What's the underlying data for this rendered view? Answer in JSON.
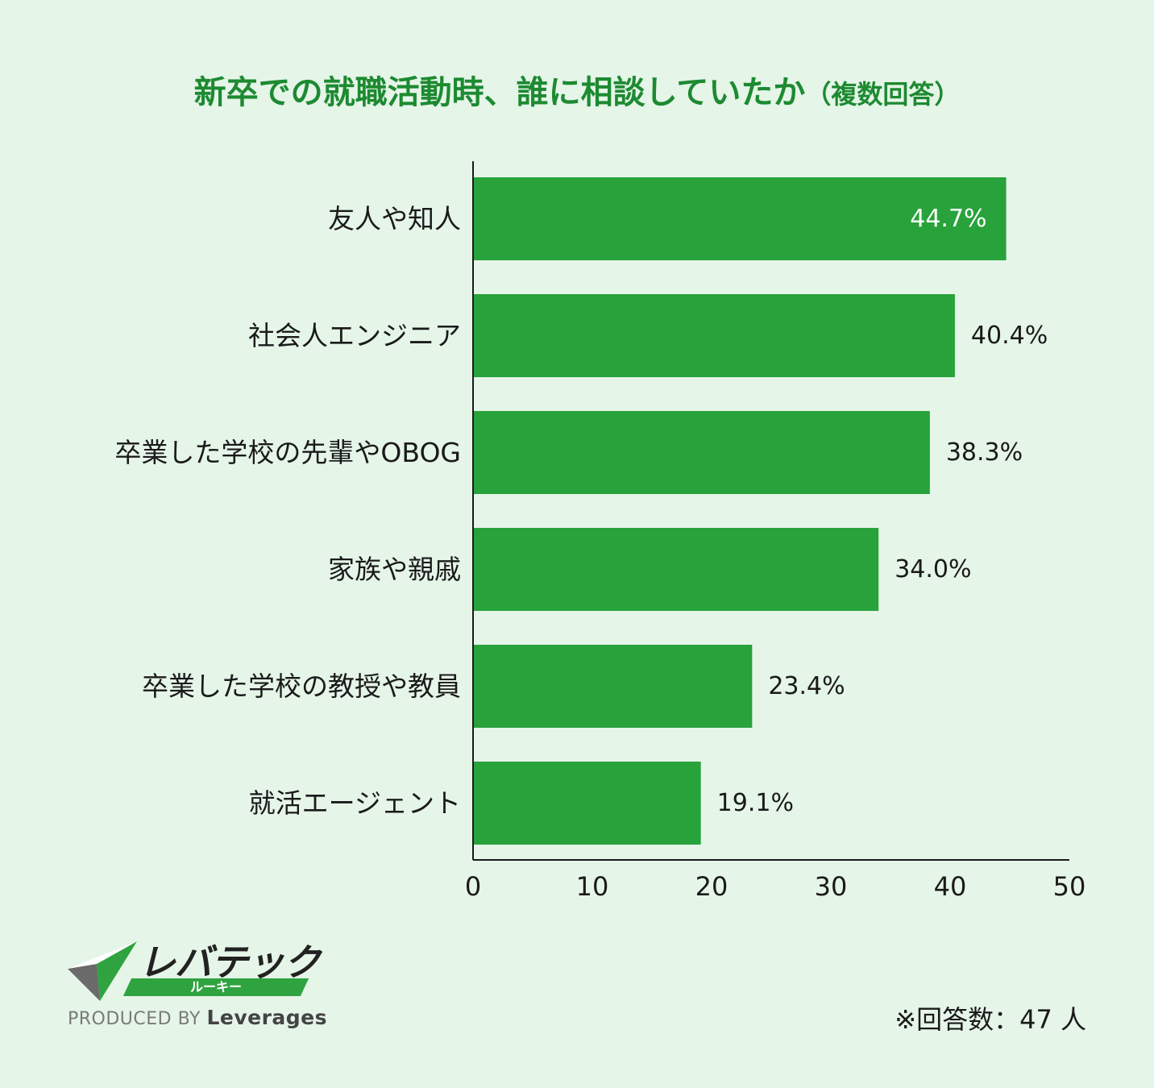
{
  "title": "新卒での就職活動時、誰に相談していたか",
  "title_suffix": "（複数回答）",
  "chart_data": {
    "type": "bar",
    "orientation": "horizontal",
    "categories": [
      "友人や知人",
      "社会人エンジニア",
      "卒業した学校の先輩やOBOG",
      "家族や親戚",
      "卒業した学校の教授や教員",
      "就活エージェント"
    ],
    "values": [
      44.7,
      40.4,
      38.3,
      34.0,
      23.4,
      19.1
    ],
    "value_labels": [
      "44.7%",
      "40.4%",
      "38.3%",
      "34.0%",
      "23.4%",
      "19.1%"
    ],
    "xlim": [
      0,
      50
    ],
    "xticks": [
      0,
      10,
      20,
      30,
      40,
      50
    ],
    "bar_color": "#28a23b",
    "grid": false
  },
  "logo": {
    "brand": "レバテック",
    "sub": "ルーキー",
    "produced_by": "PRODUCED BY",
    "company": "Leverages"
  },
  "footnote": "※回答数：47 人"
}
